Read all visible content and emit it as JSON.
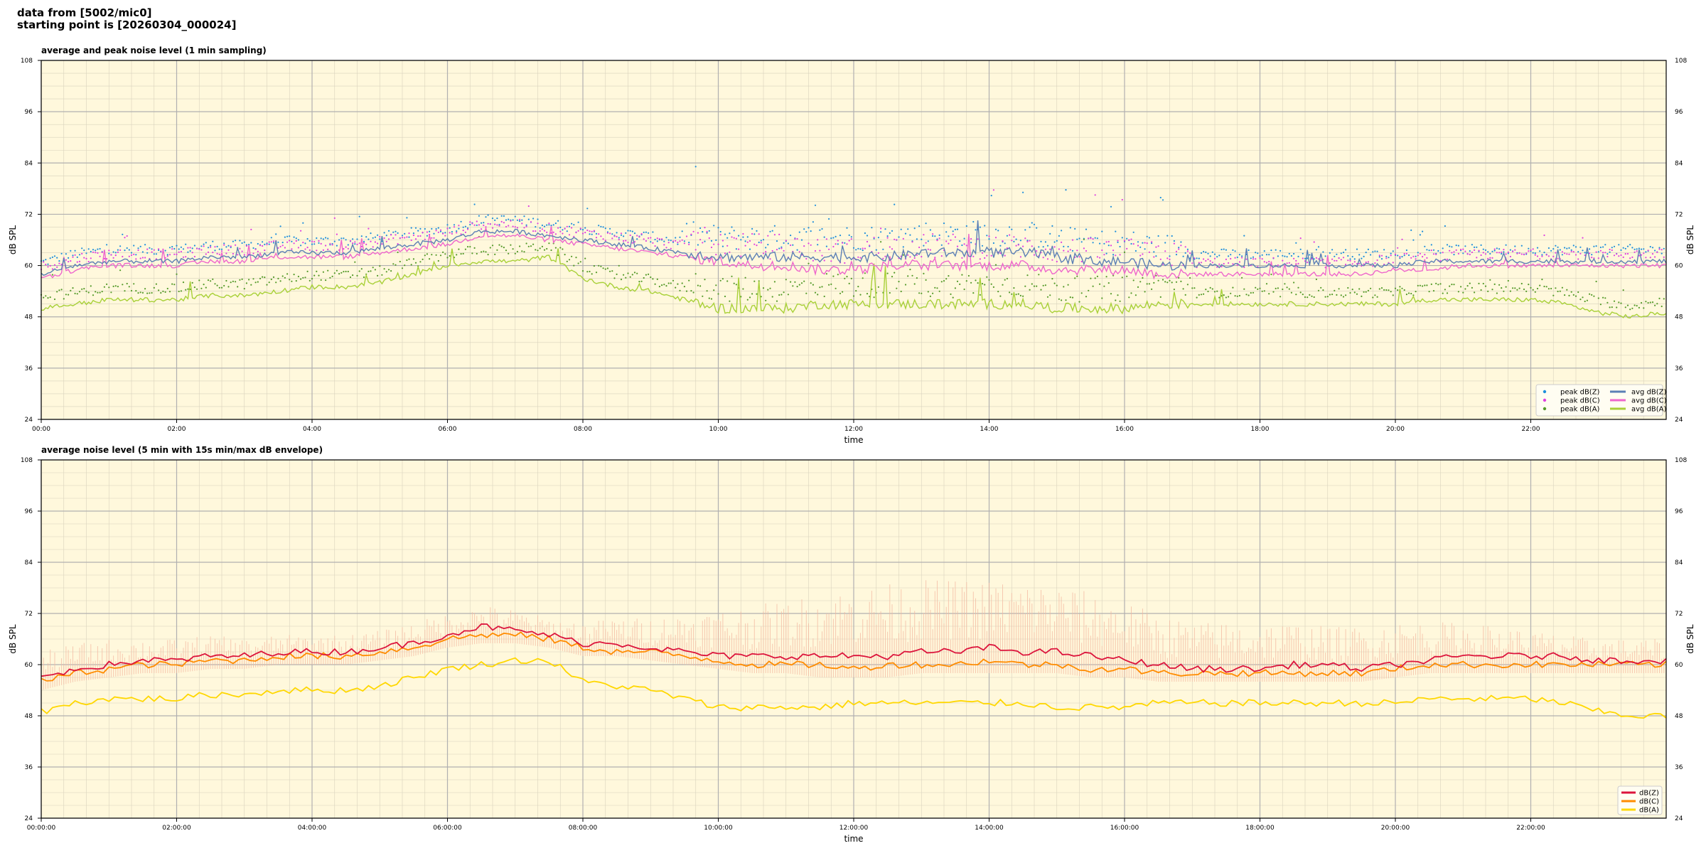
{
  "header": {
    "line1": "data from [5002/mic0]",
    "line2": "starting point is [20260304_000024]"
  },
  "colors": {
    "plot_bg": "#fff8dc",
    "peak_z": "#1f8fdc",
    "peak_c": "#e040e0",
    "peak_a": "#559a2a",
    "avg_z": "#5b7fb5",
    "avg_c": "#ee66cc",
    "avg_a": "#a8d038",
    "env_z": "#dc143c",
    "env_c": "#ff8c00",
    "env_a": "#ffd700",
    "envelope_fill": "#f4b8a0"
  },
  "chart_data": [
    {
      "type": "line",
      "title": "average and peak noise level (1 min sampling)",
      "xlabel": "time",
      "ylabel": "dB SPL",
      "xlim_hours": [
        0,
        24
      ],
      "ylim": [
        24,
        108
      ],
      "yticks": [
        24,
        36,
        48,
        60,
        72,
        84,
        96,
        108
      ],
      "xtick_labels": [
        "00:00",
        "02:00",
        "04:00",
        "06:00",
        "08:00",
        "10:00",
        "12:00",
        "14:00",
        "16:00",
        "18:00",
        "20:00",
        "22:00"
      ],
      "grid": true,
      "legend_position": "bottom-right",
      "legend": [
        "peak dB(Z)",
        "peak dB(C)",
        "peak dB(A)",
        "avg dB(Z)",
        "avg dB(C)",
        "avg dB(A)"
      ],
      "x_hours": [
        0,
        0.5,
        1,
        1.5,
        2,
        2.5,
        3,
        3.5,
        4,
        4.5,
        5,
        5.5,
        6,
        6.5,
        7,
        7.5,
        8,
        8.5,
        9,
        9.5,
        10,
        10.5,
        11,
        11.5,
        12,
        12.5,
        13,
        13.5,
        14,
        14.5,
        15,
        15.5,
        16,
        16.5,
        17,
        17.5,
        18,
        18.5,
        19,
        19.5,
        20,
        20.5,
        21,
        21.5,
        22,
        22.5,
        23,
        23.5,
        24
      ],
      "series": [
        {
          "name": "avg dB(Z)",
          "values": [
            58,
            60,
            61,
            61,
            61,
            62,
            62,
            63,
            63,
            63,
            64,
            65,
            66,
            68,
            68,
            67,
            66,
            65,
            64,
            63,
            62,
            62,
            62,
            62,
            62,
            62,
            63,
            63,
            63,
            63,
            62,
            61,
            61,
            60,
            60,
            60,
            60,
            60,
            60,
            60,
            60,
            61,
            61,
            61,
            61,
            61,
            61,
            61,
            61
          ]
        },
        {
          "name": "avg dB(C)",
          "values": [
            57,
            59,
            60,
            60,
            60,
            61,
            61,
            62,
            62,
            62,
            63,
            64,
            65,
            67,
            67,
            66,
            65,
            64,
            63,
            62,
            61,
            60,
            60,
            59,
            59,
            60,
            60,
            60,
            60,
            60,
            59,
            59,
            59,
            58,
            58,
            58,
            58,
            58,
            58,
            58,
            59,
            59,
            60,
            60,
            60,
            60,
            60,
            60,
            60
          ]
        },
        {
          "name": "avg dB(A)",
          "values": [
            50,
            51,
            52,
            52,
            52,
            53,
            53,
            54,
            55,
            55,
            56,
            58,
            60,
            61,
            61,
            62,
            57,
            55,
            54,
            52,
            50,
            50,
            50,
            51,
            51,
            51,
            51,
            51,
            51,
            51,
            50,
            50,
            50,
            51,
            51,
            51,
            51,
            51,
            51,
            51,
            51,
            52,
            52,
            52,
            52,
            51,
            49,
            48,
            49
          ]
        }
      ]
    },
    {
      "type": "line",
      "title": "average noise level (5 min with 15s min/max dB envelope)",
      "xlabel": "time",
      "ylabel": "dB SPL",
      "xlim_hours": [
        0,
        24
      ],
      "ylim": [
        24,
        108
      ],
      "yticks": [
        24,
        36,
        48,
        60,
        72,
        84,
        96,
        108
      ],
      "xtick_labels": [
        "00:00:00",
        "02:00:00",
        "04:00:00",
        "06:00:00",
        "08:00:00",
        "10:00:00",
        "12:00:00",
        "14:00:00",
        "16:00:00",
        "18:00:00",
        "20:00:00",
        "22:00:00"
      ],
      "grid": true,
      "legend_position": "bottom-right",
      "legend": [
        "dB(Z)",
        "dB(C)",
        "dB(A)"
      ],
      "x_hours": [
        0,
        0.5,
        1,
        1.5,
        2,
        2.5,
        3,
        3.5,
        4,
        4.5,
        5,
        5.5,
        6,
        6.5,
        7,
        7.5,
        8,
        8.5,
        9,
        9.5,
        10,
        10.5,
        11,
        11.5,
        12,
        12.5,
        13,
        13.5,
        14,
        14.5,
        15,
        15.5,
        16,
        16.5,
        17,
        17.5,
        18,
        18.5,
        19,
        19.5,
        20,
        20.5,
        21,
        21.5,
        22,
        22.5,
        23,
        23.5,
        24
      ],
      "series": [
        {
          "name": "dB(Z)",
          "values": [
            57,
            59,
            60,
            61,
            61,
            62,
            62,
            63,
            63,
            63,
            64,
            65,
            67,
            69,
            68,
            67,
            65,
            65,
            64,
            63,
            62,
            62,
            62,
            62,
            62,
            62,
            63,
            63,
            64,
            63,
            63,
            62,
            61,
            60,
            59,
            59,
            59,
            60,
            60,
            59,
            60,
            61,
            62,
            62,
            62,
            62,
            61,
            61,
            61
          ]
        },
        {
          "name": "dB(C)",
          "values": [
            56,
            58,
            59,
            60,
            60,
            61,
            61,
            62,
            62,
            62,
            63,
            64,
            66,
            67,
            67,
            66,
            64,
            63,
            63,
            62,
            61,
            60,
            60,
            60,
            59,
            60,
            60,
            60,
            61,
            60,
            60,
            59,
            59,
            58,
            58,
            58,
            58,
            58,
            58,
            58,
            59,
            60,
            60,
            60,
            60,
            60,
            60,
            60,
            60
          ]
        },
        {
          "name": "dB(A)",
          "values": [
            49,
            51,
            52,
            52,
            52,
            53,
            53,
            54,
            54,
            54,
            55,
            57,
            59,
            60,
            61,
            61,
            56,
            55,
            54,
            52,
            50,
            50,
            50,
            50,
            51,
            51,
            51,
            51,
            51,
            51,
            50,
            50,
            50,
            51,
            51,
            51,
            51,
            51,
            51,
            51,
            51,
            52,
            52,
            52,
            52,
            51,
            49,
            48,
            48
          ]
        }
      ],
      "envelope": {
        "name": "15s min/max dB envelope",
        "min": [
          54,
          56,
          57,
          58,
          58,
          59,
          59,
          60,
          60,
          60,
          61,
          62,
          64,
          65,
          65,
          64,
          62,
          62,
          61,
          60,
          59,
          58,
          58,
          57,
          57,
          57,
          58,
          58,
          58,
          58,
          58,
          57,
          57,
          56,
          56,
          56,
          56,
          56,
          56,
          56,
          57,
          58,
          58,
          58,
          58,
          58,
          58,
          58,
          58
        ],
        "max": [
          63,
          65,
          66,
          66,
          66,
          67,
          66,
          67,
          67,
          67,
          68,
          70,
          72,
          74,
          73,
          71,
          70,
          71,
          71,
          72,
          73,
          74,
          75,
          77,
          78,
          79,
          80,
          80,
          80,
          80,
          79,
          77,
          75,
          72,
          70,
          70,
          70,
          70,
          69,
          69,
          70,
          70,
          70,
          69,
          68,
          67,
          66,
          66,
          66
        ]
      }
    }
  ]
}
